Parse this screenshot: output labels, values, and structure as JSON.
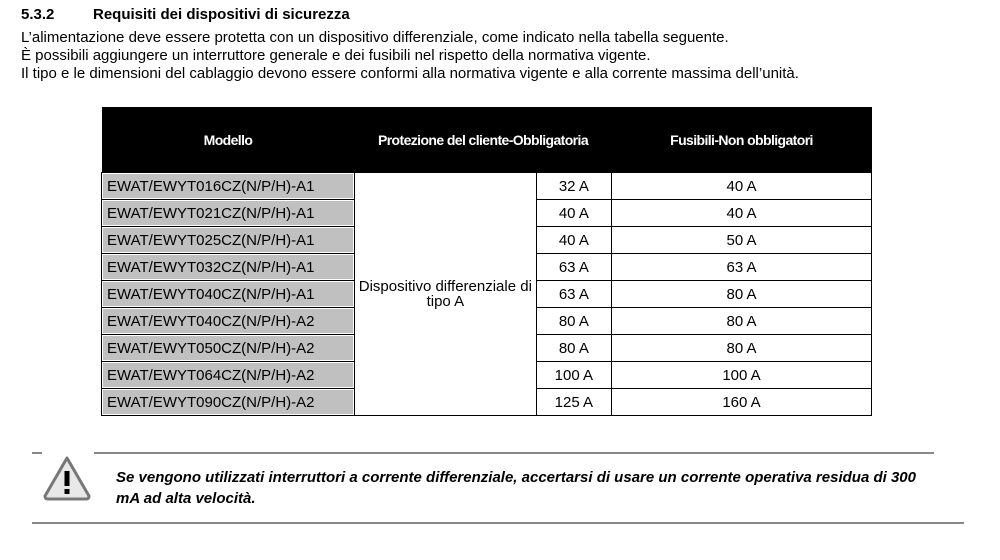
{
  "section": {
    "number": "5.3.2",
    "title": "Requisiti dei dispositivi di sicurezza"
  },
  "paragraphs": [
    "L’alimentazione deve essere protetta con un dispositivo differenziale, come indicato nella tabella seguente.",
    "È possibili aggiungere un interruttore generale e dei fusibili nel rispetto della normativa vigente.",
    "Il tipo e le dimensioni del cablaggio devono essere conformi alla normativa vigente e alla corrente massima dell’unità."
  ],
  "table": {
    "headers": [
      "Modello",
      "Protezione del cliente-Obbligatoria",
      "Fusibili-Non obbligatori"
    ],
    "protection_device": "Dispositivo differenziale di tipo A",
    "rows": [
      {
        "model": "EWAT/EWYT016CZ(N/P/H)-A1",
        "current": "32 A",
        "fuse": "40 A"
      },
      {
        "model": "EWAT/EWYT021CZ(N/P/H)-A1",
        "current": "40 A",
        "fuse": "40 A"
      },
      {
        "model": "EWAT/EWYT025CZ(N/P/H)-A1",
        "current": "40 A",
        "fuse": "50 A"
      },
      {
        "model": "EWAT/EWYT032CZ(N/P/H)-A1",
        "current": "63 A",
        "fuse": "63 A"
      },
      {
        "model": "EWAT/EWYT040CZ(N/P/H)-A1",
        "current": "63 A",
        "fuse": "80 A"
      },
      {
        "model": "EWAT/EWYT040CZ(N/P/H)-A2",
        "current": "80 A",
        "fuse": "80 A"
      },
      {
        "model": "EWAT/EWYT050CZ(N/P/H)-A2",
        "current": "80 A",
        "fuse": "80 A"
      },
      {
        "model": "EWAT/EWYT064CZ(N/P/H)-A2",
        "current": "100 A",
        "fuse": "100 A"
      },
      {
        "model": "EWAT/EWYT090CZ(N/P/H)-A2",
        "current": "125 A",
        "fuse": "160 A"
      }
    ]
  },
  "warning": {
    "icon": "warning-triangle-icon",
    "text": "Se vengono utilizzati interruttori a corrente differenziale, accertarsi di usare un corrente operativa residua di 300 mA ad alta velocità."
  }
}
